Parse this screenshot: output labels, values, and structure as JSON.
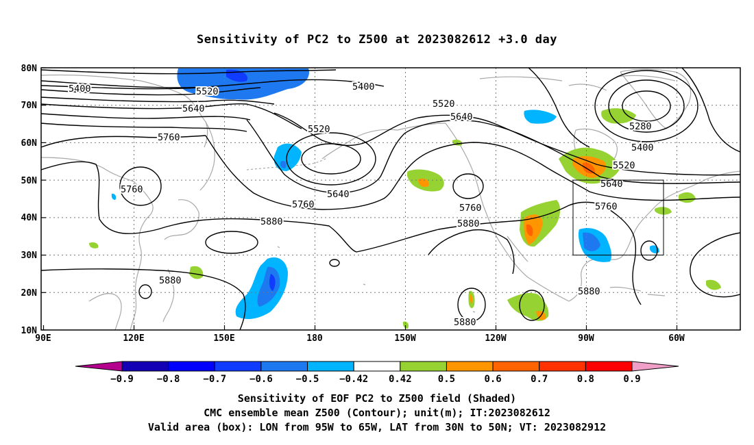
{
  "title": "Sensitivity of PC2 to Z500 at 2023082612 +3.0 day",
  "lat_labels": [
    "80N",
    "70N",
    "60N",
    "50N",
    "40N",
    "30N",
    "20N",
    "10N"
  ],
  "lon_labels": [
    "90E",
    "120E",
    "150E",
    "180",
    "150W",
    "120W",
    "90W",
    "60W"
  ],
  "contour_labels": [
    {
      "value": "5400"
    },
    {
      "value": "5520"
    },
    {
      "value": "5640"
    },
    {
      "value": "5760"
    },
    {
      "value": "5520"
    },
    {
      "value": "5400"
    },
    {
      "value": "5520"
    },
    {
      "value": "5640"
    },
    {
      "value": "5280"
    },
    {
      "value": "5400"
    },
    {
      "value": "5520"
    },
    {
      "value": "5640"
    },
    {
      "value": "5760"
    },
    {
      "value": "5760"
    },
    {
      "value": "5640"
    },
    {
      "value": "5760"
    },
    {
      "value": "5880"
    },
    {
      "value": "5880"
    },
    {
      "value": "5760"
    },
    {
      "value": "5880"
    },
    {
      "value": "5880"
    },
    {
      "value": "5880"
    }
  ],
  "colorbar": {
    "ticks": [
      "-0.9",
      "-0.8",
      "-0.7",
      "-0.6",
      "-0.5",
      "-0.42",
      "0.42",
      "0.5",
      "0.6",
      "0.7",
      "0.8",
      "0.9"
    ],
    "colors": [
      "#b4008c",
      "#1400b4",
      "#0000ff",
      "#0f3cff",
      "#1e78f0",
      "#00b4ff",
      "#ffffff",
      "#96d232",
      "#ff9600",
      "#ff6400",
      "#ff3200",
      "#ff0000",
      "#f0a0c8"
    ]
  },
  "valid_box": {
    "lon_from": "95W",
    "lon_to": "65W",
    "lat_from": "30N",
    "lat_to": "50N"
  },
  "captions": [
    "Sensitivity of EOF PC2 to Z500 field (Shaded)",
    "CMC ensemble mean Z500 (Contour); unit(m); IT:2023082612",
    "Valid area (box): LON from 95W to 65W, LAT from 30N to 50N; VT: 2023082912"
  ]
}
